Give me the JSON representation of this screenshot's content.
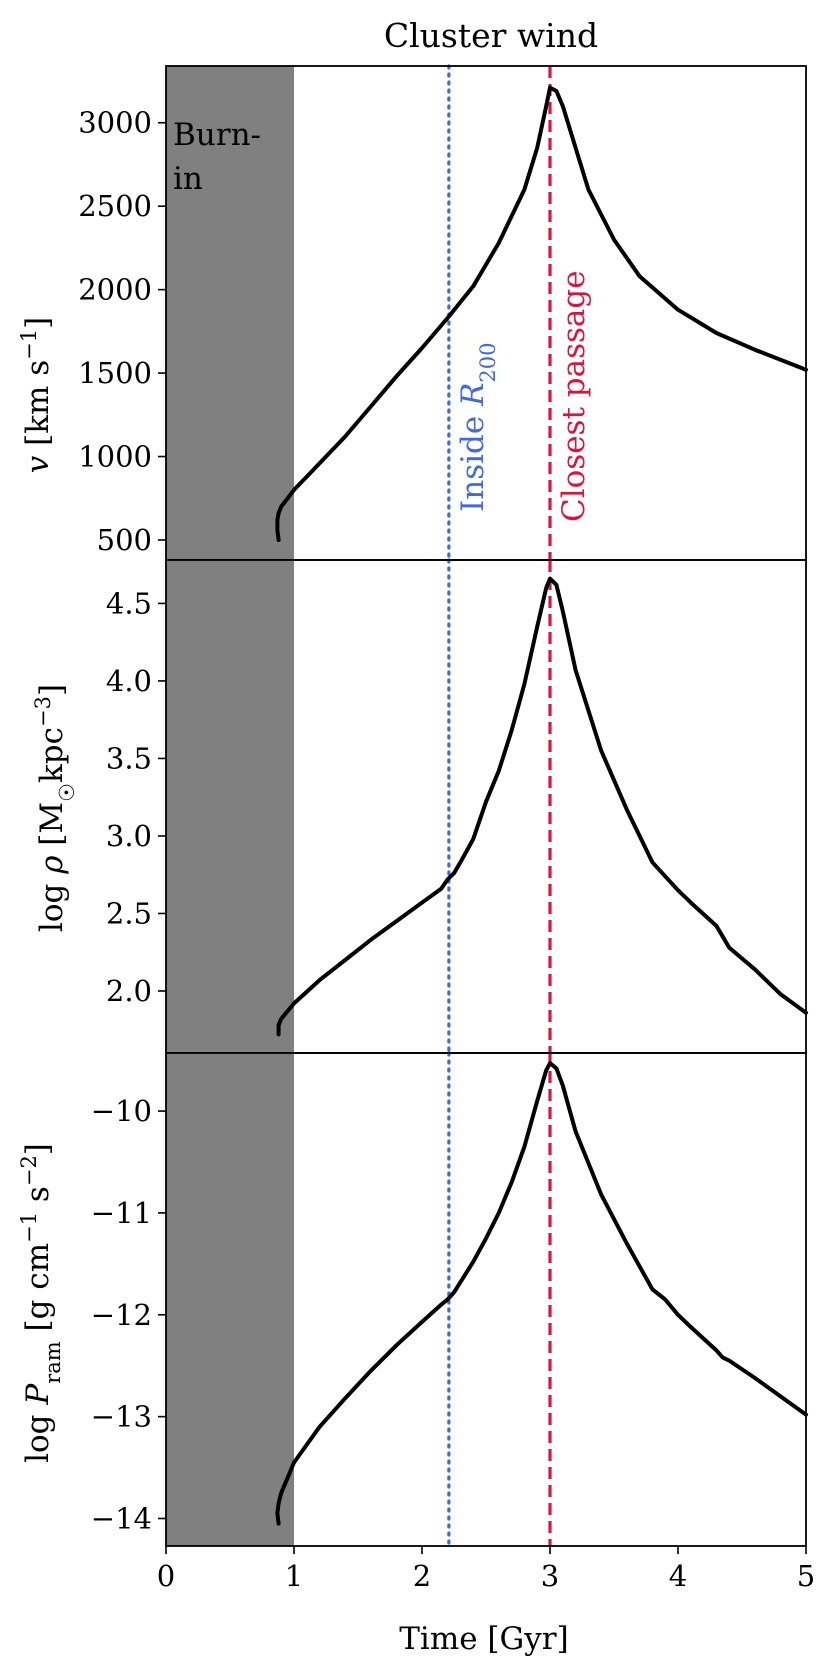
{
  "chart_data": {
    "type": "line",
    "title": "Cluster wind",
    "xlabel": "Time [Gyr]",
    "xlim": [
      0,
      5
    ],
    "x_ticks": [
      "0",
      "1",
      "2",
      "3",
      "4",
      "5"
    ],
    "shared_x": true,
    "shaded_region": {
      "label": "Burn-in",
      "label_lines": [
        "Burn-",
        "in"
      ],
      "x_range": [
        0,
        1
      ],
      "color": "#808080"
    },
    "vertical_lines": [
      {
        "label": "Inside R200",
        "label_main": "Inside ",
        "label_symbol": "R",
        "label_sub": "200",
        "x": 2.21,
        "style": "dotted",
        "color": "#4169e1"
      },
      {
        "label": "Closest passage",
        "x": 3.0,
        "style": "dashed",
        "color": "#dc143c"
      }
    ],
    "panels": [
      {
        "id": "velocity",
        "ylabel": "v [km s^-1]",
        "ylim": [
          380,
          3340
        ],
        "y_ticks": [
          500,
          1000,
          1500,
          2000,
          2500,
          3000
        ],
        "y_tick_labels": [
          "500",
          "1000",
          "1500",
          "2000",
          "2500",
          "3000"
        ],
        "series": [
          {
            "x": [
              0.88,
              0.87,
              0.87,
              0.88,
              0.9,
              0.95,
              1.0,
              1.1,
              1.2,
              1.4,
              1.6,
              1.8,
              2.0,
              2.2,
              2.4,
              2.6,
              2.8,
              2.9,
              2.97,
              3.0,
              3.05,
              3.1,
              3.2,
              3.3,
              3.5,
              3.7,
              4.0,
              4.3,
              4.6,
              5.0
            ],
            "y": [
              500,
              560,
              620,
              660,
              700,
              750,
              800,
              880,
              960,
              1120,
              1300,
              1480,
              1650,
              1830,
              2020,
              2280,
              2600,
              2850,
              3100,
              3210,
              3190,
              3100,
              2850,
              2600,
              2300,
              2080,
              1880,
              1740,
              1640,
              1520
            ]
          }
        ]
      },
      {
        "id": "density",
        "ylabel": "log rho [Msun kpc^-3]",
        "ylim": [
          1.6,
          4.78
        ],
        "y_ticks": [
          2.0,
          2.5,
          3.0,
          3.5,
          4.0,
          4.5
        ],
        "y_tick_labels": [
          "2.0",
          "2.5",
          "3.0",
          "3.5",
          "4.0",
          "4.5"
        ],
        "series": [
          {
            "x": [
              0.88,
              0.88,
              0.9,
              0.95,
              1.0,
              1.2,
              1.4,
              1.6,
              1.8,
              2.0,
              2.15,
              2.2,
              2.25,
              2.3,
              2.4,
              2.5,
              2.6,
              2.7,
              2.8,
              2.9,
              2.97,
              3.0,
              3.05,
              3.1,
              3.2,
              3.4,
              3.6,
              3.8,
              3.9,
              4.0,
              4.1,
              4.3,
              4.35,
              4.4,
              4.6,
              4.8,
              5.0
            ],
            "y": [
              1.72,
              1.78,
              1.82,
              1.87,
              1.92,
              2.07,
              2.2,
              2.33,
              2.45,
              2.57,
              2.66,
              2.72,
              2.76,
              2.83,
              2.98,
              3.22,
              3.42,
              3.68,
              3.98,
              4.35,
              4.6,
              4.66,
              4.62,
              4.45,
              4.07,
              3.55,
              3.17,
              2.83,
              2.74,
              2.65,
              2.57,
              2.42,
              2.35,
              2.28,
              2.14,
              1.98,
              1.86
            ]
          }
        ]
      },
      {
        "id": "ram_pressure",
        "ylabel": "log P_ram [g cm^-1 s^-2]",
        "ylim": [
          -14.27,
          -9.43
        ],
        "y_ticks": [
          -14,
          -13,
          -12,
          -11,
          -10
        ],
        "y_tick_labels": [
          "−14",
          "−13",
          "−12",
          "−11",
          "−10"
        ],
        "series": [
          {
            "x": [
              0.88,
              0.87,
              0.88,
              0.9,
              0.95,
              1.0,
              1.2,
              1.4,
              1.6,
              1.8,
              2.0,
              2.15,
              2.2,
              2.25,
              2.3,
              2.4,
              2.5,
              2.6,
              2.7,
              2.8,
              2.9,
              2.97,
              3.0,
              3.05,
              3.1,
              3.2,
              3.4,
              3.6,
              3.8,
              3.9,
              4.0,
              4.1,
              4.3,
              4.35,
              4.4,
              4.6,
              4.8,
              5.0
            ],
            "y": [
              -14.05,
              -13.95,
              -13.85,
              -13.75,
              -13.6,
              -13.45,
              -13.1,
              -12.82,
              -12.55,
              -12.3,
              -12.07,
              -11.9,
              -11.85,
              -11.78,
              -11.68,
              -11.48,
              -11.25,
              -11.0,
              -10.7,
              -10.35,
              -9.9,
              -9.6,
              -9.53,
              -9.58,
              -9.75,
              -10.2,
              -10.82,
              -11.3,
              -11.75,
              -11.85,
              -12.0,
              -12.12,
              -12.35,
              -12.42,
              -12.45,
              -12.62,
              -12.8,
              -12.98
            ]
          }
        ]
      }
    ]
  }
}
